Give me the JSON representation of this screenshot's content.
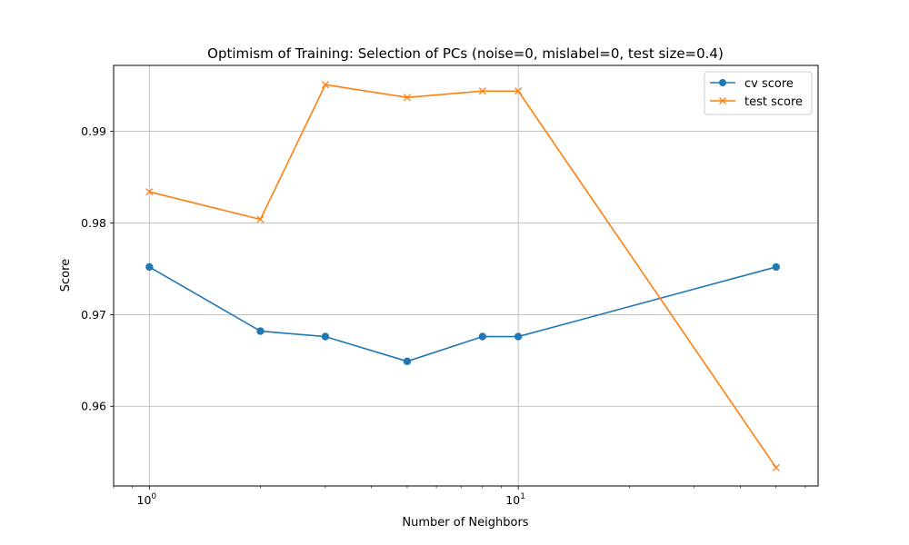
{
  "chart_data": {
    "type": "line",
    "title": "Optimism of Training: Selection of PCs (noise=0, mislabel=0, test size=0.4)",
    "xlabel": "Number of Neighbors",
    "ylabel": "Score",
    "xscale": "log",
    "xlim": [
      0.8,
      65
    ],
    "ylim": [
      0.9513,
      0.9972
    ],
    "x": [
      1,
      2,
      3,
      5,
      8,
      10,
      50
    ],
    "x_ticks": [
      {
        "value": 1,
        "base": "10",
        "exp": "0"
      },
      {
        "value": 10,
        "base": "10",
        "exp": "1"
      }
    ],
    "y_ticks": [
      {
        "value": 0.96,
        "label": "0.96"
      },
      {
        "value": 0.97,
        "label": "0.97"
      },
      {
        "value": 0.98,
        "label": "0.98"
      },
      {
        "value": 0.99,
        "label": "0.99"
      }
    ],
    "series": [
      {
        "name": "cv score",
        "color": "#1f77b4",
        "marker": "circle",
        "values": [
          0.9752,
          0.9682,
          0.9676,
          0.9649,
          0.9676,
          0.9676,
          0.9752
        ]
      },
      {
        "name": "test score",
        "color": "#ff7f0e",
        "marker": "x",
        "values": [
          0.9834,
          0.9804,
          0.9951,
          0.9937,
          0.9944,
          0.9944,
          0.9533
        ]
      }
    ],
    "grid": true,
    "legend": "top-right"
  }
}
